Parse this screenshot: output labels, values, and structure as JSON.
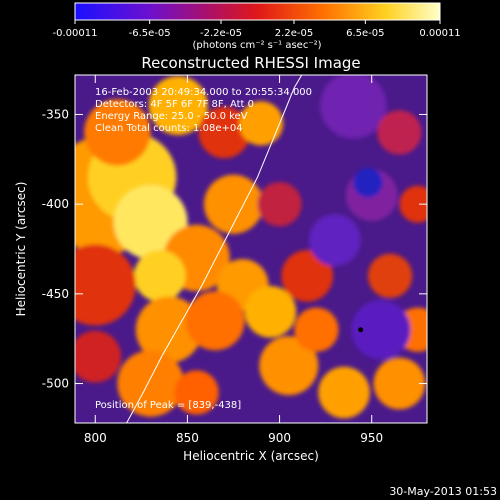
{
  "chart_data": {
    "type": "heatmap",
    "title": "Reconstructed RHESSI Image",
    "xlabel": "Heliocentric X (arcsec)",
    "ylabel": "Heliocentric Y (arcsec)",
    "xlim": [
      789,
      980
    ],
    "ylim": [
      -522,
      -328
    ],
    "xticks": [
      800,
      850,
      900,
      950
    ],
    "yticks": [
      -350,
      -400,
      -450,
      -500
    ],
    "colorbar": {
      "range": [
        -0.00011,
        0.00011
      ],
      "tick_values": [
        -0.00011,
        -6.5e-05,
        -2.2e-05,
        2.2e-05,
        6.5e-05,
        0.00011
      ],
      "tick_labels": [
        "-0.00011",
        "-6.5e-05",
        "-2.2e-05",
        "2.2e-05",
        "6.5e-05",
        "0.00011"
      ],
      "unit_label": "(photons cm⁻² s⁻¹ asec⁻²)"
    },
    "info_lines": [
      "16-Feb-2003 20:49:34.000 to 20:55:34.000",
      "Detectors: 4F 5F 6F 7F 8F, Att 0",
      "Energy Range: 25.0 - 50.0 keV",
      "Clean    Total counts: 1.08e+04"
    ],
    "peak_label": "Position of Peak = [839,-438]",
    "peak": [
      839,
      -438
    ],
    "limb_curve": {
      "x": [
        817,
        826,
        836,
        847,
        858,
        868,
        878,
        888,
        896,
        902,
        908,
        912
      ],
      "y": [
        -522,
        -505,
        -485,
        -465,
        -445,
        -425,
        -405,
        -385,
        -365,
        -350,
        -335,
        -328
      ]
    },
    "grid": false
  },
  "footer": {
    "date": "30-May-2013 01:53"
  }
}
